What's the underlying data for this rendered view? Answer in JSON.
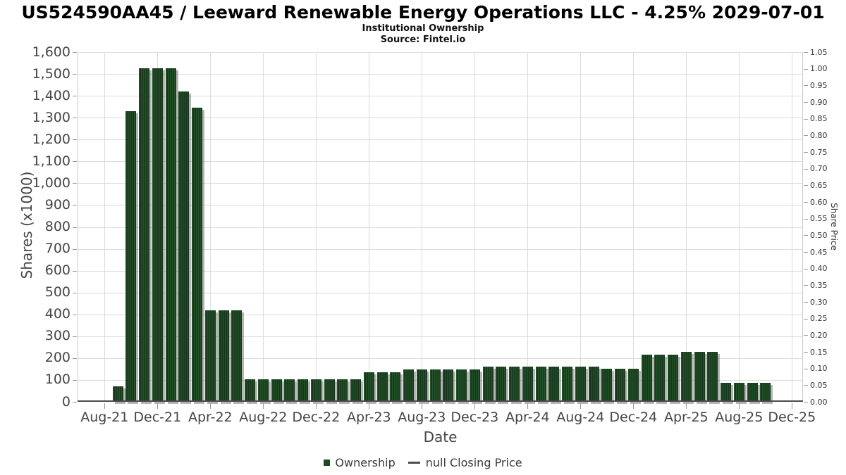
{
  "header": {
    "title": "US524590AA45 / Leeward Renewable Energy Operations LLC - 4.25% 2029-07-01",
    "subtitle": "Institutional Ownership",
    "source": "Source: Fintel.io"
  },
  "legend": {
    "ownership_label": "Ownership",
    "price_label": "null Closing Price"
  },
  "colors": {
    "bar_green": "#1E4A24",
    "bar_stripe_dark": "#16361B",
    "bar_shadow": "rgba(90,90,90,0.45)",
    "grid": "#DCDCDC",
    "plot_border": "#C9C9C9",
    "x_axis_line": "#4A4A4A",
    "tick_text": "#454545",
    "title_text": "#000000"
  },
  "chart_data": {
    "type": "bar",
    "title": "US524590AA45 / Leeward Renewable Energy Operations LLC - 4.25% 2029-07-01",
    "subtitle": "Institutional Ownership",
    "source": "Source: Fintel.io",
    "xlabel": "Date",
    "ylabel_left": "Shares (x1000)",
    "ylabel_right": "Share Price",
    "grid": true,
    "legend_position": "bottom",
    "ylim_left": [
      0,
      1600
    ],
    "ylim_right": [
      0,
      1.05
    ],
    "x_tick_labels": [
      "Aug-21",
      "Dec-21",
      "Apr-22",
      "Aug-22",
      "Dec-22",
      "Apr-23",
      "Aug-23",
      "Dec-23",
      "Apr-24",
      "Aug-24",
      "Dec-24",
      "Apr-25",
      "Aug-25",
      "Dec-25"
    ],
    "y_left_tick_labels": [
      "0",
      "100",
      "200",
      "300",
      "400",
      "500",
      "600",
      "700",
      "800",
      "900",
      "1,000",
      "1,100",
      "1,200",
      "1,300",
      "1,400",
      "1,500",
      "1,600"
    ],
    "y_right_tick_labels": [
      "0.00",
      "0.05",
      "0.10",
      "0.15",
      "0.20",
      "0.25",
      "0.30",
      "0.35",
      "0.40",
      "0.45",
      "0.50",
      "0.55",
      "0.60",
      "0.65",
      "0.70",
      "0.75",
      "0.80",
      "0.85",
      "0.90",
      "0.95",
      "1.00",
      "1.05"
    ],
    "series_name": "Ownership",
    "secondary_series_name": "null Closing Price",
    "secondary_series_values": [],
    "categories": [
      "Sep-21",
      "Oct-21",
      "Nov-21",
      "Dec-21",
      "Jan-22",
      "Feb-22",
      "Mar-22",
      "Apr-22",
      "May-22",
      "Jun-22",
      "Jul-22",
      "Aug-22",
      "Sep-22",
      "Oct-22",
      "Nov-22",
      "Dec-22",
      "Jan-23",
      "Feb-23",
      "Mar-23",
      "Apr-23",
      "May-23",
      "Jun-23",
      "Jul-23",
      "Aug-23",
      "Sep-23",
      "Oct-23",
      "Nov-23",
      "Dec-23",
      "Jan-24",
      "Feb-24",
      "Mar-24",
      "Apr-24",
      "May-24",
      "Jun-24",
      "Jul-24",
      "Aug-24",
      "Sep-24",
      "Oct-24",
      "Nov-24",
      "Dec-24",
      "Jan-25",
      "Feb-25",
      "Mar-25",
      "Apr-25",
      "May-25",
      "Jun-25",
      "Jul-25",
      "Aug-25",
      "Sep-25",
      "Oct-25"
    ],
    "values": [
      70,
      1330,
      1525,
      1525,
      1525,
      1420,
      1345,
      420,
      420,
      420,
      103,
      103,
      103,
      103,
      103,
      103,
      103,
      103,
      103,
      135,
      135,
      135,
      148,
      148,
      148,
      148,
      148,
      148,
      162,
      162,
      162,
      162,
      162,
      162,
      162,
      162,
      162,
      152,
      152,
      152,
      215,
      215,
      215,
      230,
      230,
      230,
      87,
      87,
      87,
      87
    ]
  }
}
